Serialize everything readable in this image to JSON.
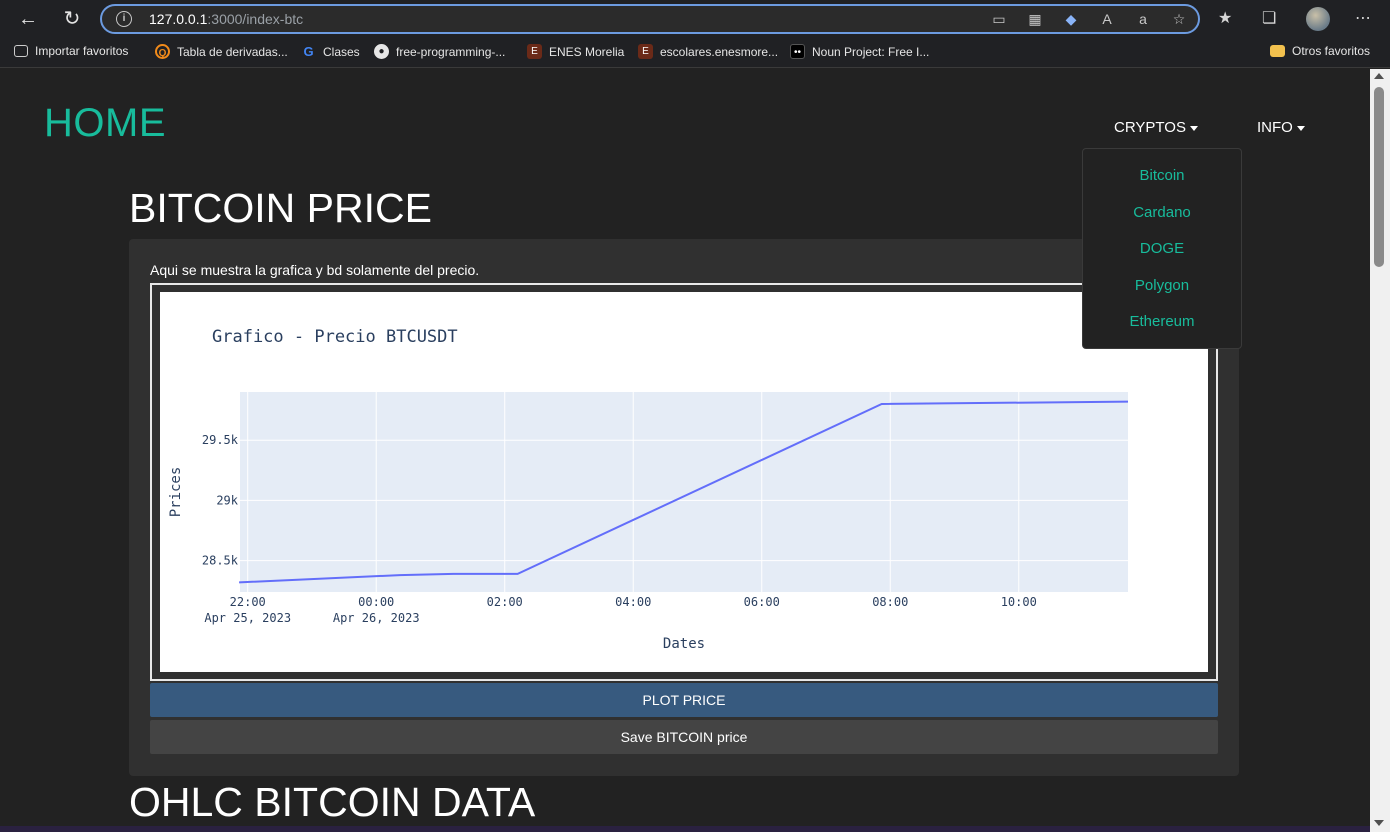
{
  "browser": {
    "url_host": "127.0.0.1",
    "url_path": ":3000/index-btc",
    "bookmarks": [
      {
        "label": "Importar favoritos",
        "icon": "import-icon",
        "color": "#e6e6e6"
      },
      {
        "label": "Tabla de derivadas...",
        "icon": "q-icon",
        "color": "#f28b1a"
      },
      {
        "label": "Clases",
        "icon": "google-icon",
        "color": "#4285f4"
      },
      {
        "label": "free-programming-...",
        "icon": "github-icon",
        "color": "#e6e6e6"
      },
      {
        "label": "ENES Morelia",
        "icon": "enes-icon",
        "color": "#7a2a1a"
      },
      {
        "label": "escolares.enesmore...",
        "icon": "enes-icon",
        "color": "#7a2a1a"
      },
      {
        "label": "Noun Project: Free I...",
        "icon": "noun-icon",
        "color": "#000000"
      }
    ],
    "other_favorites": "Otros favoritos"
  },
  "nav": {
    "brand": "HOME",
    "cryptos": "CRYPTOS",
    "info": "INFO",
    "dropdown_items": [
      "Bitcoin",
      "Cardano",
      "DOGE",
      "Polygon",
      "Ethereum"
    ]
  },
  "main": {
    "title": "BITCOIN PRICE",
    "description": "Aqui se muestra la grafica y bd solamente del precio.",
    "plot_button": "PLOT PRICE",
    "save_button": "Save BITCOIN price",
    "section2_title": "OHLC BITCOIN DATA"
  },
  "chart_data": {
    "type": "line",
    "title": "Grafico - Precio BTCUSDT",
    "xlabel": "Dates",
    "ylabel": "Prices",
    "x_ticks": [
      {
        "label": "22:00",
        "sub": "Apr 25, 2023"
      },
      {
        "label": "00:00",
        "sub": "Apr 26, 2023"
      },
      {
        "label": "02:00",
        "sub": ""
      },
      {
        "label": "04:00",
        "sub": ""
      },
      {
        "label": "06:00",
        "sub": ""
      },
      {
        "label": "08:00",
        "sub": ""
      },
      {
        "label": "10:00",
        "sub": ""
      }
    ],
    "y_ticks": [
      "28.5k",
      "29k",
      "29.5k"
    ],
    "ylim": [
      28240,
      29900
    ],
    "x_hours": [
      -2.0,
      0.0,
      2.0,
      4.0,
      6.0,
      8.0,
      10.0
    ],
    "x": [
      "2023-04-25 21:52",
      "2023-04-26 00:22",
      "2023-04-26 01:12",
      "2023-04-26 02:12",
      "2023-04-26 07:52",
      "2023-04-26 11:42"
    ],
    "y": [
      28320,
      28380,
      28390,
      28390,
      29800,
      29820
    ],
    "line_color": "#636efa",
    "plot_bg": "#e5ecf6",
    "grid": true
  }
}
